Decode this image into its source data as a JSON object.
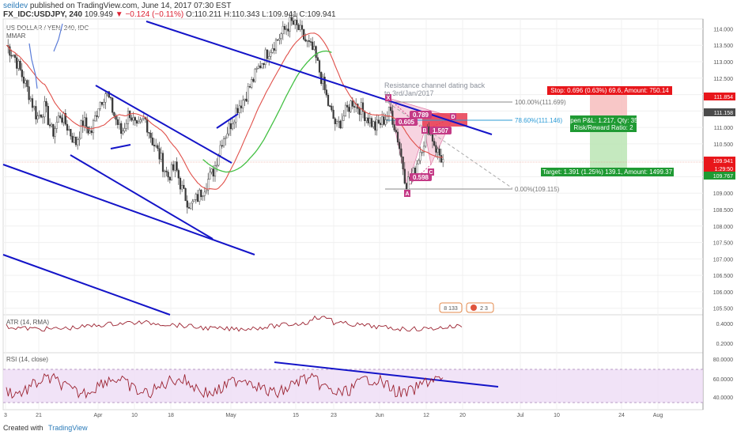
{
  "header": {
    "author": "seildev",
    "published": "published on TradingView.com, June 14, 2017 07:30 EST",
    "symbol": "FX_IDC:USDJPY, 240",
    "last": "109.949",
    "change": "▼ −0.124 (−0.11%)",
    "ohlc": "O:110.211  H:110.343  L:109.941  C:109.941"
  },
  "main": {
    "symbol_label": "US DOLLAR / YEN, 240, IDC",
    "indicator_label": "MMAR",
    "annotation": [
      "Resistance channel dating back",
      "to 3rd/Jan/2017"
    ],
    "fib_100": "100.00%(111.699)",
    "fib_786": "78.60%(111.146)",
    "fib_0": "0.00%(109.115)",
    "ratio_789": "0.789",
    "ratio_605": "0.605",
    "ratio_1507": "1.507",
    "ratio_598": "0.598",
    "points": [
      "X",
      "A",
      "B",
      "C",
      "D"
    ],
    "stop_label": "Stop: 0.696 (0.63%) 69.6, Amount: 750.14",
    "pnl_label_1": "Open P&L: 1.217, Qty: 359",
    "pnl_label_2": "Risk/Reward Ratio: 2",
    "target_label": "Target: 1.391 (1.25%) 139.1, Amount: 1499.37",
    "badge_counts": [
      "8  133",
      "2  3"
    ]
  },
  "price_axis": {
    "ticks": [
      "114.000",
      "113.500",
      "113.000",
      "112.500",
      "112.000",
      "111.500",
      "111.000",
      "110.500",
      "110.000",
      "109.500",
      "109.000",
      "108.500",
      "108.000",
      "107.500",
      "107.000",
      "106.500",
      "106.000",
      "105.500"
    ],
    "badges": [
      {
        "text": "111.854",
        "color": "#e8161b"
      },
      {
        "text": "111.158",
        "color": "#4a4a4a"
      },
      {
        "text": "109.941",
        "color": "#e8161b"
      },
      {
        "text": "1:29:50",
        "color": "#e8161b"
      },
      {
        "text": "109.767",
        "color": "#1f9a33"
      }
    ]
  },
  "atr": {
    "label": "ATR (14, RMA)",
    "ticks": [
      "0.4000",
      "0.2000"
    ]
  },
  "rsi": {
    "label": "RSI (14, close)",
    "ticks": [
      "80.0000",
      "60.0000",
      "40.0000"
    ]
  },
  "time_axis": [
    "3",
    "21",
    "Apr",
    "10",
    "18",
    "May",
    "15",
    "23",
    "Jun",
    "12",
    "20",
    "Jul",
    "10",
    "24",
    "Aug"
  ],
  "footer": {
    "created_with": "Created with",
    "brand": "TradingView"
  },
  "chart_data": {
    "type": "line",
    "price": {
      "close_approx": [
        113.5,
        113.2,
        112.6,
        112.0,
        111.3,
        111.6,
        110.8,
        111.4,
        111.0,
        110.5,
        111.2,
        110.8,
        111.7,
        112.1,
        111.4,
        110.8,
        111.5,
        110.9,
        111.3,
        110.6,
        110.1,
        109.5,
        109.8,
        109.0,
        108.6,
        108.9,
        109.3,
        109.7,
        110.6,
        111.0,
        111.6,
        111.9,
        112.4,
        112.9,
        113.3,
        113.6,
        113.9,
        114.2,
        114.0,
        113.6,
        113.3,
        112.5,
        111.6,
        111.0,
        111.4,
        111.8,
        111.6,
        111.3,
        111.0,
        111.2,
        111.5,
        110.6,
        109.3,
        109.6,
        110.4,
        111.0,
        110.3,
        109.9
      ],
      "ylim": [
        105.3,
        114.3
      ]
    },
    "fib_levels": [
      {
        "pct": 100,
        "value": 111.699
      },
      {
        "pct": 78.6,
        "value": 111.146
      },
      {
        "pct": 0,
        "value": 109.115
      }
    ],
    "position": {
      "stop_pct": 0.63,
      "stop_amount": 750.14,
      "target_pct": 1.25,
      "target_amount": 1499.37,
      "qty": 359,
      "open_pnl": 1.217,
      "risk_reward": 2
    },
    "atr_ylim": [
      0.1,
      0.55
    ],
    "rsi_ylim": [
      28,
      88
    ],
    "rsi_band": [
      30,
      70
    ]
  }
}
